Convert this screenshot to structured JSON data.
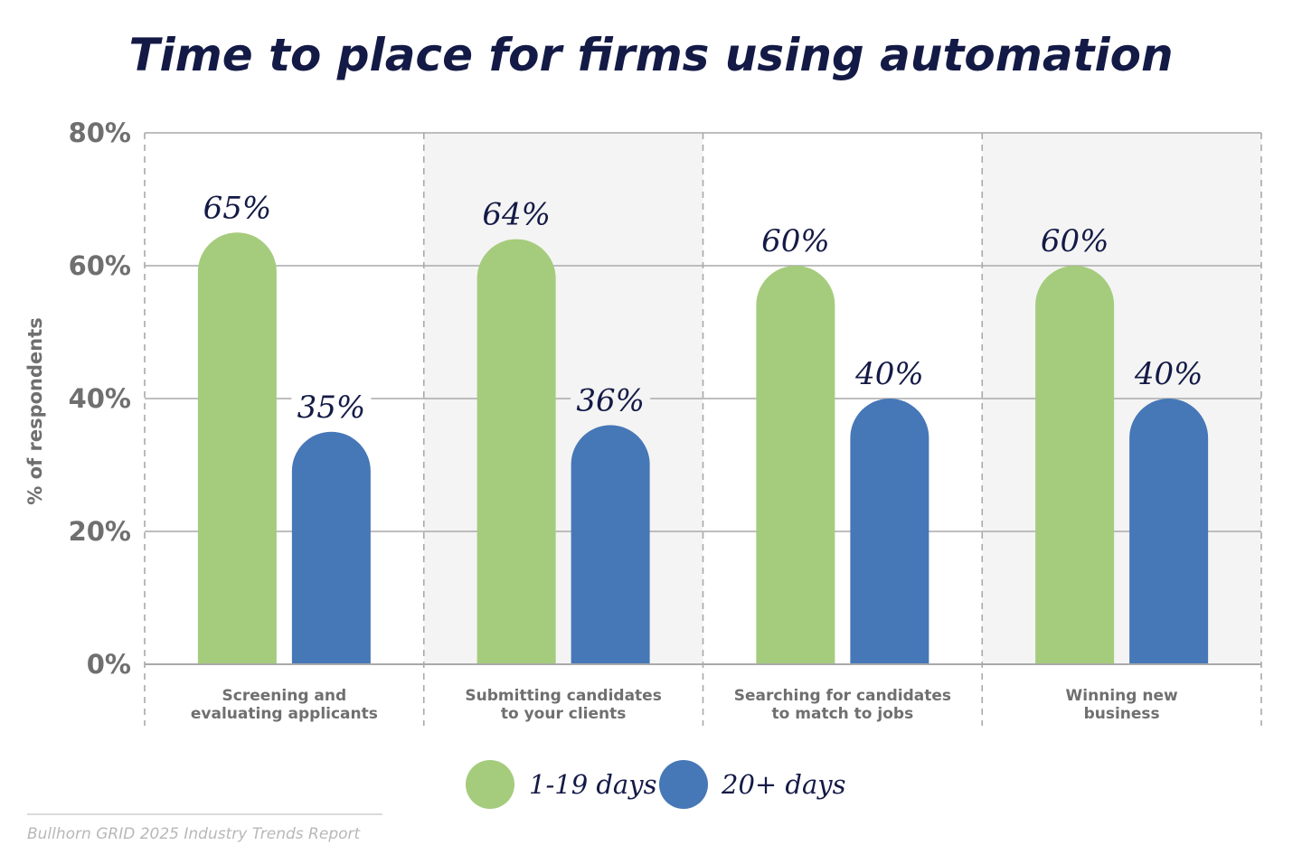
{
  "chart_data": {
    "type": "bar",
    "title": "Time to place for firms using automation",
    "ylabel": "% of respondents",
    "xlabel": "",
    "ylim": [
      0,
      80
    ],
    "yticks": [
      0,
      20,
      40,
      60,
      80
    ],
    "ytick_labels": [
      "0%",
      "20%",
      "40%",
      "60%",
      "80%"
    ],
    "categories": [
      [
        "Screening and",
        "evaluating applicants"
      ],
      [
        "Submitting candidates",
        "to your clients"
      ],
      [
        "Searching for candidates",
        "to match to jobs"
      ],
      [
        "Winning new",
        "business"
      ]
    ],
    "series": [
      {
        "name": "1-19 days",
        "color": "#a5cc7c",
        "values": [
          65,
          64,
          60,
          60
        ],
        "labels": [
          "65%",
          "64%",
          "60%",
          "60%"
        ]
      },
      {
        "name": "20+ days",
        "color": "#4677b7",
        "values": [
          35,
          36,
          40,
          40
        ],
        "labels": [
          "35%",
          "36%",
          "40%",
          "40%"
        ]
      }
    ],
    "grid": true,
    "alternate_band_color": "#f4f4f4",
    "legend": "bottom-center"
  },
  "source": "Bullhorn GRID 2025 Industry Trends Report"
}
